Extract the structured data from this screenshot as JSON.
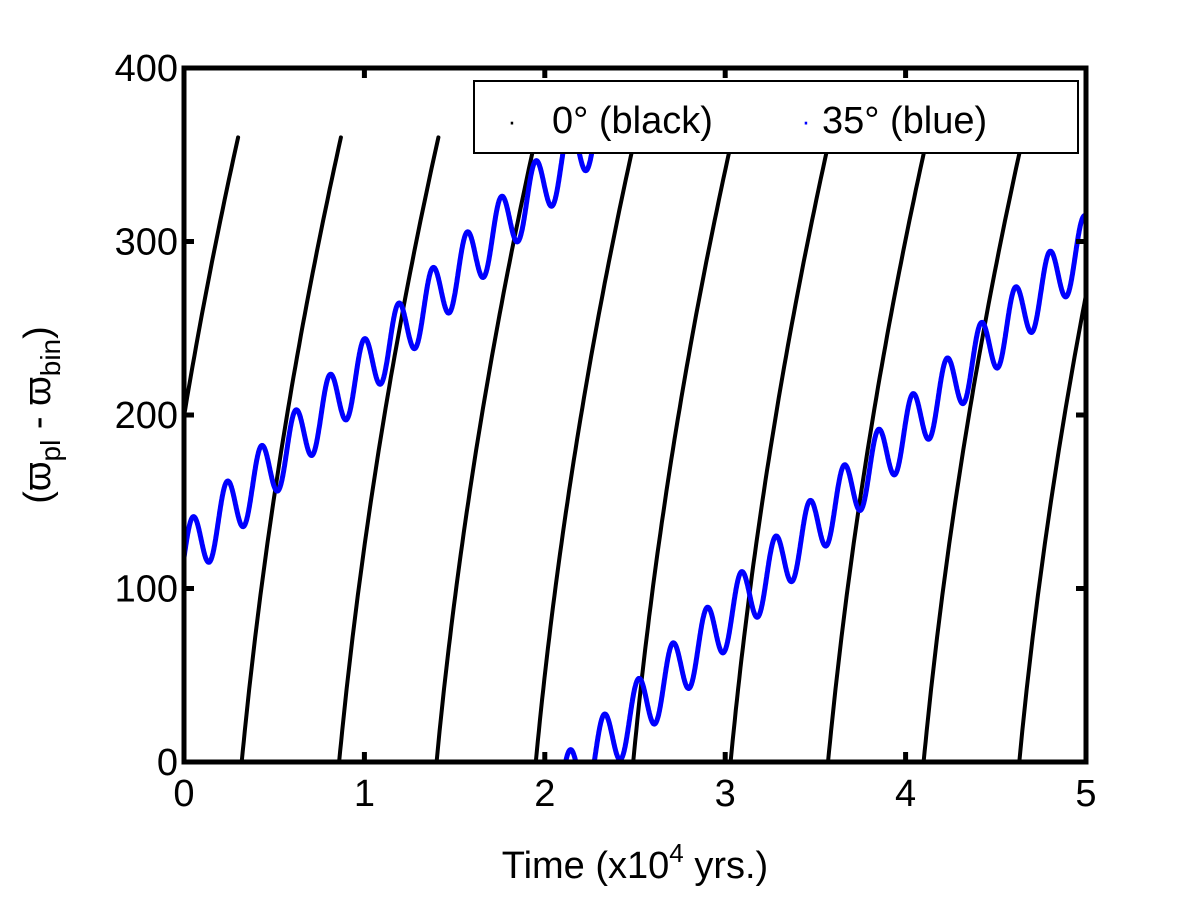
{
  "chart_data": {
    "type": "scatter",
    "title": "",
    "xlabel": {
      "main": "Time (x10",
      "exponent": "4",
      "suffix": " yrs.)"
    },
    "ylabel": {
      "open": "(",
      "sym1": "ϖ",
      "sub1": "pl",
      "mid": " - ",
      "sym2": "ϖ",
      "sub2": "bin",
      "close": ")"
    },
    "xlim": [
      0,
      5
    ],
    "ylim": [
      0,
      400
    ],
    "xticks": [
      "0",
      "1",
      "2",
      "3",
      "4",
      "5"
    ],
    "yticks": [
      "0",
      "100",
      "200",
      "300",
      "400"
    ],
    "grid": false,
    "legend_position": "top-right",
    "legend": [
      {
        "marker": "·",
        "label": "0° (black)",
        "color": "#000000"
      },
      {
        "marker": "·",
        "label": "35° (blue)",
        "color": "#0000ff"
      }
    ],
    "series": [
      {
        "label": "0°",
        "color": "#000000",
        "model": "circulating",
        "phase_zero_crossings": [
          -0.25,
          0.32,
          0.86,
          1.4,
          1.95,
          2.49,
          3.03,
          3.57,
          4.1,
          4.63
        ],
        "range": [
          0,
          360
        ]
      },
      {
        "label": "35°",
        "color": "#0000ff",
        "model": "drifting-oscillation",
        "x_start": 0,
        "y_start": 118,
        "drift_rate_per_1e4yr": 108,
        "oscillation_period_1e4yr": 0.19,
        "oscillation_amplitude": 18,
        "wrap": 360
      }
    ]
  }
}
